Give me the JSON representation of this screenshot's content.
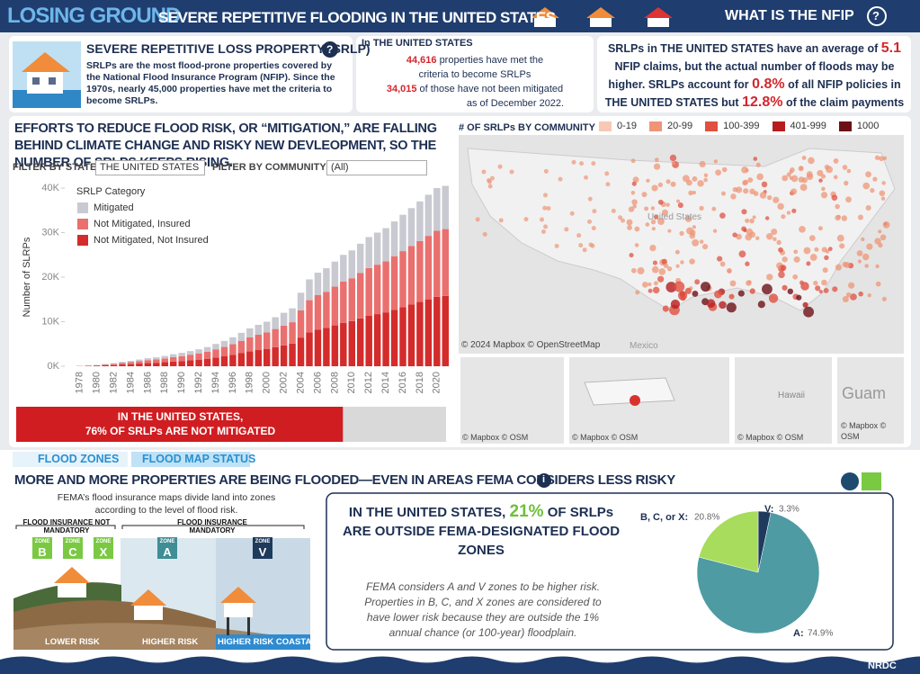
{
  "header": {
    "title_main": "LOSING GROUND",
    "title_sub": "SEVERE REPETITIVE FLOODING IN THE UNITED STATES",
    "nfip_link": "WHAT IS THE NFIP",
    "help_icon": "?"
  },
  "srlp_box": {
    "title": "SEVERE REPETITIVE LOSS PROPERTY (SRLP)",
    "text": "SRLPs are the most flood-prone properties covered by the National Flood Insurance Program (NFIP). Since the 1970s, nearly 45,000 properties have met the criteria to become SRLPs."
  },
  "count_box": {
    "heading": "In THE UNITED STATES",
    "line1_number": "44,616",
    "line1_text": "properties have met the",
    "line2": "criteria to become SRLPs",
    "line3_number": "34,015",
    "line3_text": "of those have not been mitigated",
    "line4": "as of December 2022."
  },
  "claims_box": {
    "part1": "SRLPs in THE UNITED STATES have an average of",
    "claims": "5.1",
    "part2": "NFIP claims, but the actual number of floods may be higher.",
    "part3": "SRLPs account for",
    "policies": "0.8%",
    "part4": "of all NFIP policies in THE UNITED STATES but",
    "payments": "12.8%",
    "part5": "of the claim payments"
  },
  "filters": {
    "state_label": "FILTER BY STATE",
    "state_value": "THE UNITED STATES",
    "community_label": "FILTER BY COMMUNITY",
    "community_value": "(All)"
  },
  "chart_data": [
    {
      "type": "bar",
      "stacked": true,
      "title": "EFFORTS TO REDUCE FLOOD RISK, OR “MITIGATION,” ARE FALLING BEHIND CLIMATE CHANGE AND RISKY NEW DEVLEOPMENT, SO THE NUMBER OF SRLPS KEEPS RISING.",
      "y_label": "Number of SLRPs",
      "legend_title": "SRLP Category",
      "categories": [
        "1978",
        null,
        "1980",
        null,
        "1982",
        null,
        "1984",
        null,
        "1986",
        null,
        "1988",
        null,
        "1990",
        null,
        "1992",
        null,
        "1994",
        null,
        "1996",
        null,
        "1998",
        null,
        "2000",
        null,
        "2002",
        null,
        "2004",
        null,
        "2006",
        null,
        "2008",
        null,
        "2010",
        null,
        "2012",
        null,
        "2014",
        null,
        "2016",
        null,
        "2018",
        null,
        "2020",
        null
      ],
      "series": [
        {
          "name": "Mitigated",
          "color": "#c8c9d1",
          "values": [
            20,
            50,
            70,
            120,
            170,
            240,
            290,
            360,
            430,
            480,
            550,
            650,
            720,
            810,
            910,
            1030,
            1200,
            1370,
            1560,
            1790,
            2030,
            2230,
            2400,
            2640,
            2880,
            3120,
            3960,
            4670,
            5040,
            5280,
            5630,
            6000,
            6240,
            6590,
            6960,
            7200,
            7440,
            7790,
            8160,
            8510,
            8880,
            9230,
            9600,
            9710
          ]
        },
        {
          "name": "Not Mitigated, Insured",
          "color": "#e9706e",
          "values": [
            40,
            70,
            110,
            180,
            260,
            370,
            440,
            550,
            670,
            740,
            850,
            1000,
            1110,
            1260,
            1410,
            1590,
            1850,
            2110,
            2400,
            2780,
            3150,
            3440,
            3700,
            4070,
            4440,
            4810,
            6100,
            7220,
            7770,
            8140,
            8700,
            9250,
            9620,
            10180,
            10730,
            11100,
            11470,
            12030,
            12580,
            13140,
            13690,
            14250,
            14800,
            14990
          ]
        },
        {
          "name": "Not Mitigated, Not Insured",
          "color": "#d42b2b",
          "values": [
            40,
            80,
            120,
            200,
            270,
            390,
            470,
            590,
            700,
            780,
            900,
            1050,
            1170,
            1330,
            1480,
            1680,
            1950,
            2220,
            2540,
            2930,
            3320,
            3630,
            3900,
            4290,
            4680,
            5070,
            6440,
            7610,
            8190,
            8580,
            9170,
            9750,
            10140,
            10730,
            11310,
            11700,
            12090,
            12680,
            13260,
            13850,
            14430,
            15020,
            15600,
            15800
          ]
        }
      ],
      "ylim": [
        0,
        40000
      ],
      "yticks": [
        {
          "value": 0,
          "label": "0K"
        },
        {
          "value": 10000,
          "label": "10K"
        },
        {
          "value": 20000,
          "label": "20K"
        },
        {
          "value": 30000,
          "label": "30K"
        },
        {
          "value": 40000,
          "label": "40K"
        }
      ],
      "grid": false
    },
    {
      "type": "pie",
      "categories": [
        "V:",
        "A:",
        "B, C, or X:"
      ],
      "values": [
        3.3,
        74.9,
        20.8
      ],
      "value_labels": [
        "3.3%",
        "74.9%",
        "20.8%"
      ],
      "colors": [
        "#1e3a5c",
        "#4e9ba3",
        "#a7dc5c"
      ]
    }
  ],
  "mitigation_bar": {
    "value": 76,
    "line1": "IN THE UNITED STATES,",
    "line2": "76% OF SRLPs ARE NOT MITIGATED"
  },
  "map": {
    "legend_title": "# OF SRLPs BY COMMUNITY",
    "legend": [
      {
        "label": "0-19",
        "color": "#f7c8b4"
      },
      {
        "label": "20-99",
        "color": "#ee9577"
      },
      {
        "label": "100-399",
        "color": "#e05040"
      },
      {
        "label": "401-999",
        "color": "#b71d1f"
      },
      {
        "label": "1000+",
        "color": "#6d1016"
      }
    ],
    "country": "United States",
    "neighbor": "Mexico",
    "credit": "© 2024 Mapbox  © OpenStreetMap",
    "inset_credit": "© Mapbox  © OSM",
    "hawaii": "Hawaii",
    "guam": "Guam",
    "guam_credit1": "© Mapbox  ©",
    "guam_credit2": "OSM"
  },
  "flood_zones": {
    "tab1": "FLOOD ZONES",
    "tab2": "FLOOD MAP STATUS",
    "heading": "MORE AND MORE PROPERTIES ARE BEING FLOODED—EVEN IN AREAS FEMA CONSIDERS LESS RISKY",
    "info_icon": "i",
    "intro": "FEMA’s flood insurance maps divide land into zones according to the level of flood risk.",
    "not_mandatory": "FLOOD INSURANCE NOT MANDATORY",
    "mandatory": "FLOOD INSURANCE MANDATORY",
    "zone_word": "ZONE",
    "zones": [
      "B",
      "C",
      "X",
      "A",
      "V"
    ],
    "risk_lower": "LOWER RISK",
    "risk_higher": "HIGHER RISK",
    "risk_coastal": "HIGHER RISK COASTAL",
    "stat_part1": "IN THE UNITED STATES,",
    "stat_pct": "21%",
    "stat_part2": "OF SRLPs ARE OUTSIDE FEMA-DESIGNATED FLOOD ZONES",
    "note": "FEMA considers A and V zones to be higher risk. Properties in B, C, and X zones are considered to have lower risk because they are outside the 1% annual chance (or 100-year) floodplain."
  },
  "footer": {
    "brand": "NRDC"
  }
}
